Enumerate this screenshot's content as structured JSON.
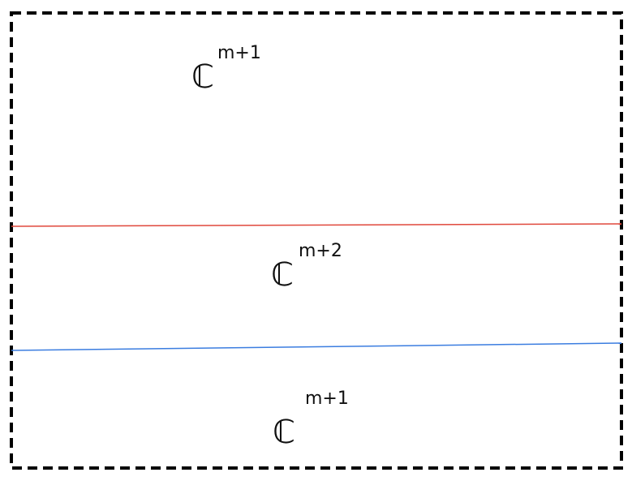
{
  "regions": [
    {
      "base": "ℂ",
      "exponent": "m+1"
    },
    {
      "base": "ℂ",
      "exponent": "m+2"
    },
    {
      "base": "ℂ",
      "exponent": "m+1"
    }
  ]
}
